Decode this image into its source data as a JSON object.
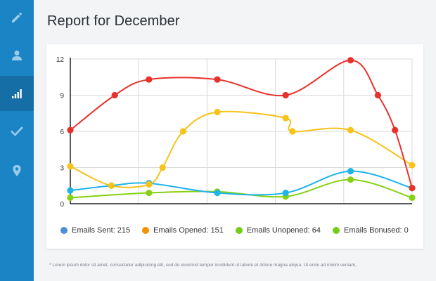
{
  "sidebar": {
    "items": [
      {
        "icon": "pencil-icon",
        "active": false
      },
      {
        "icon": "user-icon",
        "active": false
      },
      {
        "icon": "signal-bars-icon",
        "active": true
      },
      {
        "icon": "checkmark-icon",
        "active": false
      },
      {
        "icon": "map-pin-icon",
        "active": false
      }
    ]
  },
  "page": {
    "title": "Report for December"
  },
  "legend": [
    {
      "label": "Emails Sent: 215",
      "color": "#4a90d9"
    },
    {
      "label": "Emails Opened: 151",
      "color": "#f39200"
    },
    {
      "label": "Emails Unopened: 64",
      "color": "#76cc19"
    },
    {
      "label": "Emails Bonused: 0",
      "color": "#76cc19"
    }
  ],
  "footnote": "* Lorem ipsum dolor sit amet, consectetur adipisicing elit, sed do eiusmod tempor incididunt ut labore et dolore magna aliqua. Ut enim ad minim veniam,",
  "chart_data": {
    "type": "line",
    "smooth": true,
    "grid": true,
    "ylim": [
      0,
      12
    ],
    "yticks": [
      0,
      3,
      6,
      9,
      12
    ],
    "xlim": [
      0,
      10
    ],
    "title": "",
    "xlabel": "",
    "ylabel": "",
    "series": [
      {
        "color": "#e8312a",
        "points": [
          [
            0,
            6.1
          ],
          [
            1.3,
            9.0
          ],
          [
            2.3,
            10.3
          ],
          [
            4.3,
            10.3
          ],
          [
            6.3,
            9.0
          ],
          [
            8.2,
            11.9
          ],
          [
            9.0,
            9.0
          ],
          [
            9.5,
            6.1
          ],
          [
            10.0,
            1.3
          ]
        ]
      },
      {
        "color": "#f7c21a",
        "points": [
          [
            0,
            3.1
          ],
          [
            1.2,
            1.5
          ],
          [
            2.3,
            1.6
          ],
          [
            2.7,
            3.0
          ],
          [
            3.3,
            6.0
          ],
          [
            4.3,
            7.6
          ],
          [
            6.3,
            7.1
          ],
          [
            6.5,
            6.0
          ],
          [
            8.2,
            6.1
          ],
          [
            10.0,
            3.2
          ]
        ]
      },
      {
        "color": "#1fb3ea",
        "points": [
          [
            0,
            1.1
          ],
          [
            1.2,
            1.5
          ],
          [
            2.3,
            1.7
          ],
          [
            4.3,
            0.9
          ],
          [
            6.3,
            0.9
          ],
          [
            8.2,
            2.7
          ],
          [
            10.0,
            1.3
          ]
        ]
      },
      {
        "color": "#85d113",
        "points": [
          [
            0,
            0.5
          ],
          [
            2.3,
            0.9
          ],
          [
            4.3,
            1.0
          ],
          [
            6.3,
            0.6
          ],
          [
            8.2,
            2.0
          ],
          [
            10.0,
            0.5
          ]
        ]
      }
    ]
  }
}
